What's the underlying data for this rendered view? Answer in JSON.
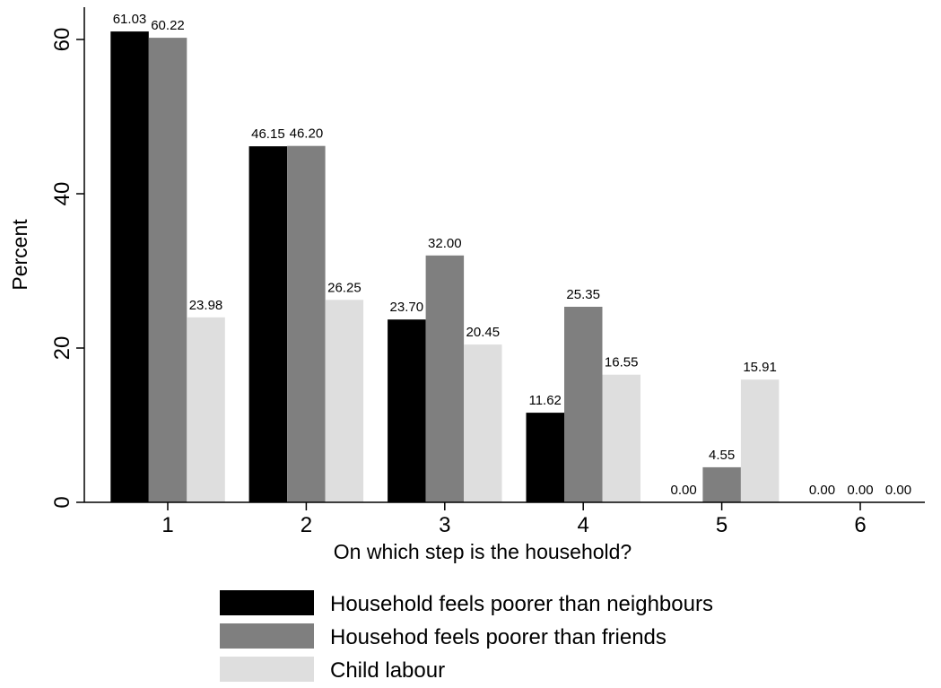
{
  "chart_data": {
    "type": "bar",
    "categories": [
      "1",
      "2",
      "3",
      "4",
      "5",
      "6"
    ],
    "series": [
      {
        "name": "Household feels poorer than neighbours",
        "color": "#000000",
        "values": [
          61.03,
          46.15,
          23.7,
          11.62,
          0.0,
          0.0
        ],
        "labels": [
          "61.03",
          "46.15",
          "23.70",
          "11.62",
          "0.00",
          "0.00"
        ]
      },
      {
        "name": "Househod feels poorer than friends",
        "color": "#7f7f7f",
        "values": [
          60.22,
          46.2,
          32.0,
          25.35,
          4.55,
          0.0
        ],
        "labels": [
          "60.22",
          "46.20",
          "32.00",
          "25.35",
          "4.55",
          "0.00"
        ]
      },
      {
        "name": "Child labour",
        "color": "#dedede",
        "values": [
          23.98,
          26.25,
          20.45,
          16.55,
          15.91,
          0.0
        ],
        "labels": [
          "23.98",
          "26.25",
          "20.45",
          "16.55",
          "15.91",
          "0.00"
        ]
      }
    ],
    "xlabel": "On which step is the household?",
    "ylabel": "Percent",
    "ylim": [
      0,
      65
    ],
    "yticks": [
      0,
      20,
      40,
      60
    ],
    "grid": false,
    "legend_position": "bottom"
  }
}
